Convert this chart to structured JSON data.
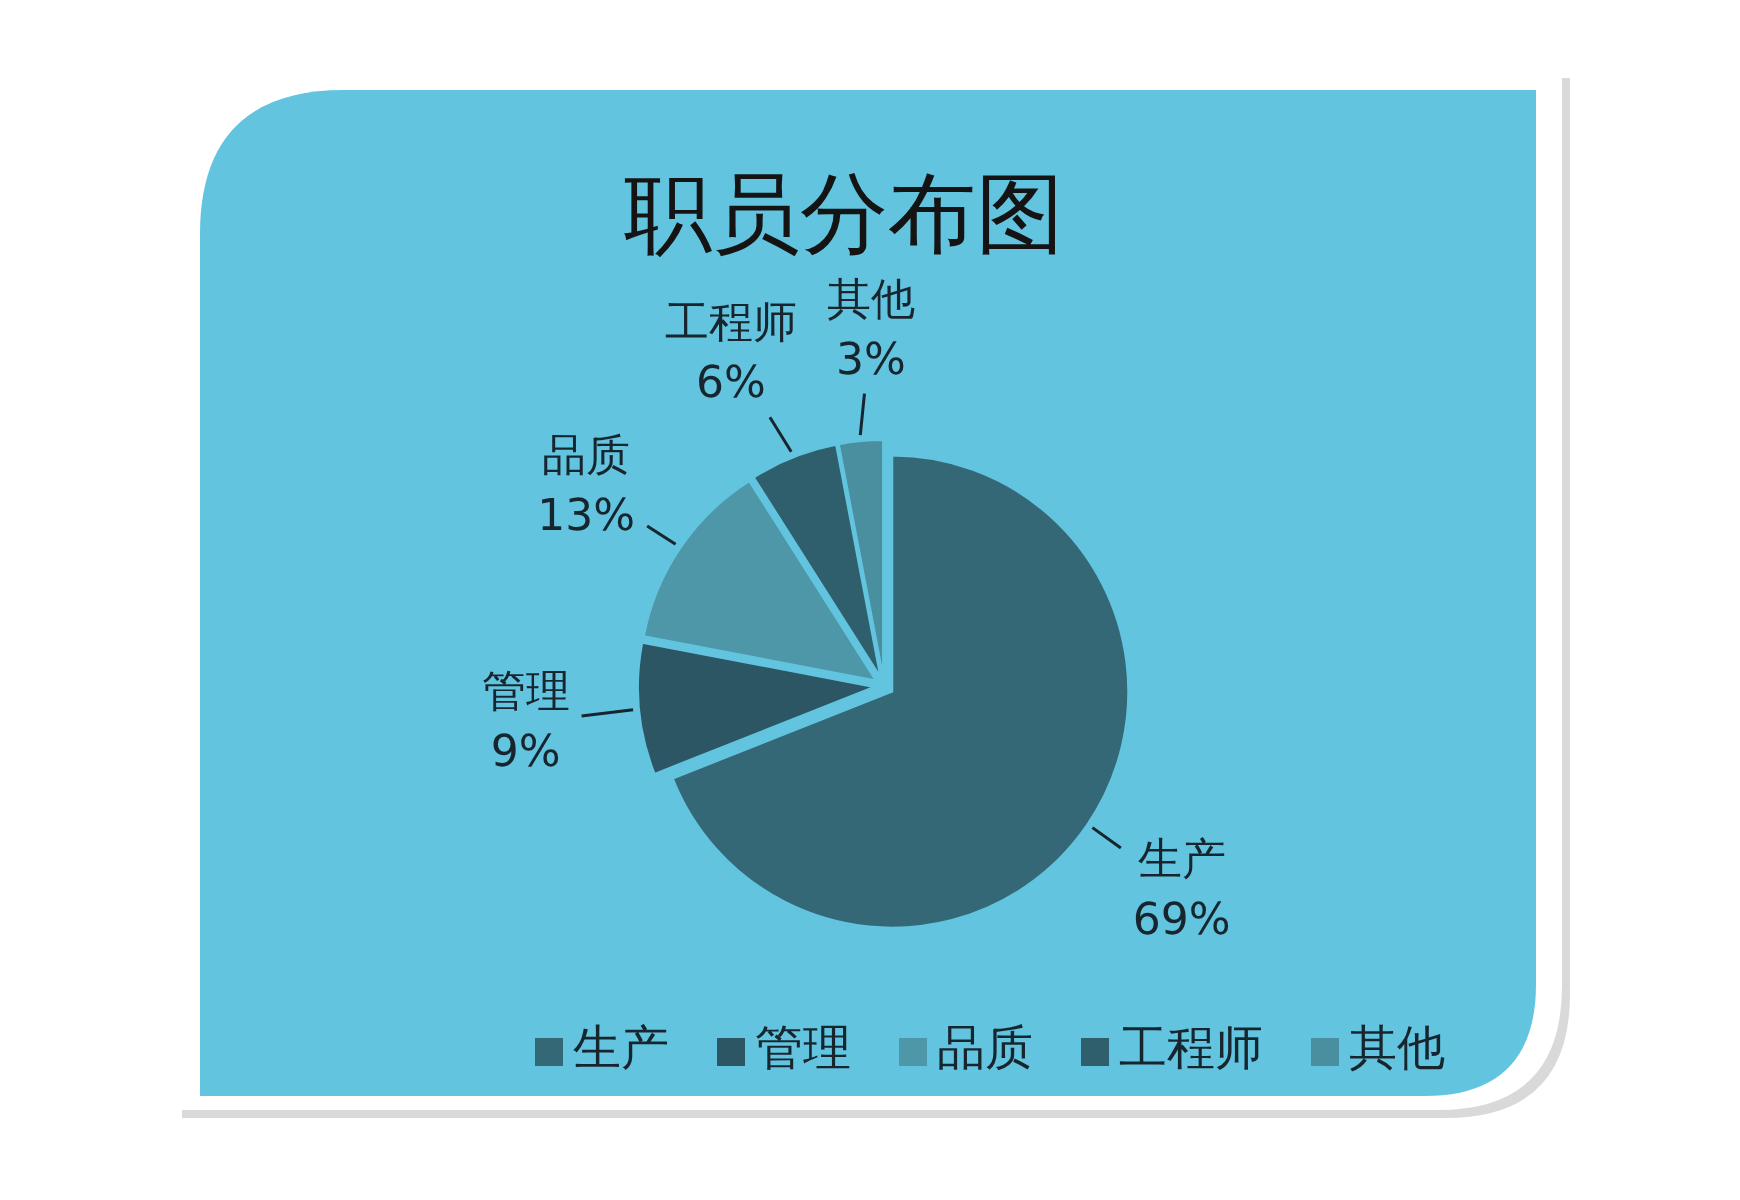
{
  "chart_data": {
    "type": "pie",
    "title": "职员分布图",
    "categories": [
      "生产",
      "管理",
      "品质",
      "工程师",
      "其他"
    ],
    "values": [
      69,
      9,
      13,
      6,
      3
    ],
    "colors": [
      "#356877",
      "#2c5663",
      "#4e97a8",
      "#2f5f6d",
      "#4a8f9f"
    ],
    "value_labels": [
      "69%",
      "9%",
      "13%",
      "6%",
      "3%"
    ],
    "legend": "bottom"
  }
}
